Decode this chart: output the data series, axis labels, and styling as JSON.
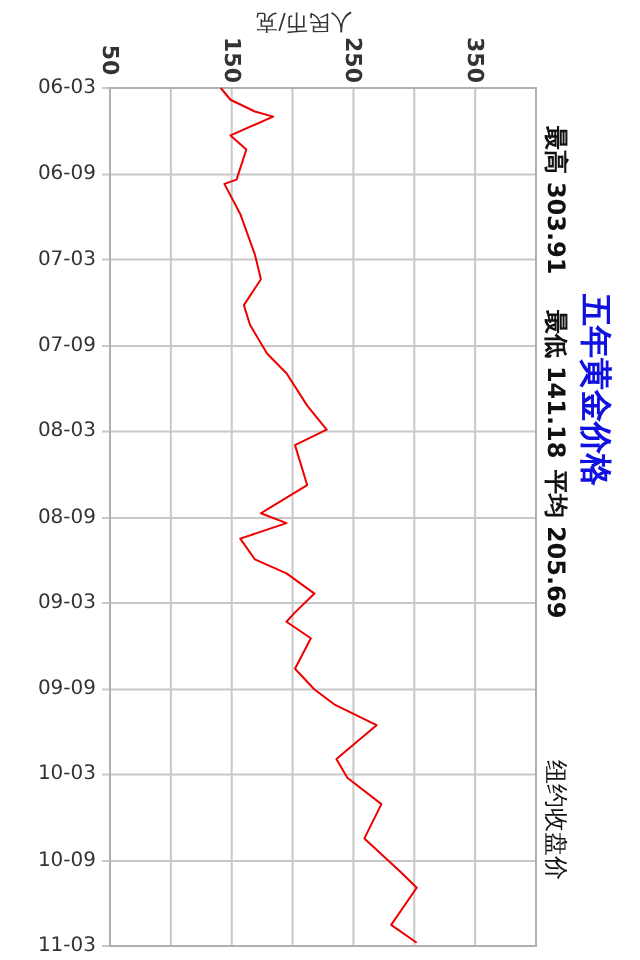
{
  "chart_data": {
    "type": "line",
    "title": "五年黄金价格",
    "ylabel": "人民币/克",
    "annotations": [
      "最高 303.91",
      "最低 141.18",
      "平均 205.69",
      "纽约收盘价"
    ],
    "orientation": "horizontal",
    "ylim": [
      "2011-03",
      "2006-03"
    ],
    "yticks": [
      {
        "value": "2006-03",
        "label": "06-03"
      },
      {
        "value": "2006-09",
        "label": "06-09"
      },
      {
        "value": "2007-03",
        "label": "07-03"
      },
      {
        "value": "2007-09",
        "label": "07-09"
      },
      {
        "value": "2008-03",
        "label": "08-03"
      },
      {
        "value": "2008-09",
        "label": "08-09"
      },
      {
        "value": "2009-03",
        "label": "09-03"
      },
      {
        "value": "2009-09",
        "label": "09-09"
      },
      {
        "value": "2010-03",
        "label": "10-03"
      },
      {
        "value": "2010-09",
        "label": "10-09"
      },
      {
        "value": "2011-03",
        "label": "11-03"
      }
    ],
    "xlim": [
      50,
      400
    ],
    "xticks": [
      50,
      {
        "value": 100,
        "label": null
      },
      150,
      {
        "value": 200,
        "label": null
      },
      250,
      {
        "value": 300,
        "label": null
      },
      350,
      {
        "value": 400,
        "label": null
      }
    ],
    "grid": true,
    "marker": "none",
    "line_style": "solid",
    "x": [
      "2006-03-01",
      "2006-03-26",
      "2006-04-20",
      "2006-05-01",
      "2006-06-10",
      "2006-07-10",
      "2006-09-12",
      "2006-09-21",
      "2006-11-24",
      "2007-02-18",
      "2007-04-12",
      "2007-06-06",
      "2007-07-18",
      "2007-09-17",
      "2007-10-29",
      "2008-01-06",
      "2008-02-26",
      "2008-03-30",
      "2008-06-23",
      "2008-08-22",
      "2008-09-12",
      "2008-10-15",
      "2008-11-28",
      "2008-12-28",
      "2009-02-09",
      "2009-03-21",
      "2009-04-10",
      "2009-05-15",
      "2009-07-19",
      "2009-09-01",
      "2009-10-04",
      "2009-11-16",
      "2010-01-27",
      "2010-03-08",
      "2010-05-03",
      "2010-07-15",
      "2010-09-25",
      "2010-10-28",
      "2011-01-15",
      "2011-02-22"
    ],
    "series": [
      {
        "color": "#ee0000",
        "values": [
          141,
          149,
          169,
          184,
          149,
          162,
          154,
          144,
          157,
          169,
          174,
          160,
          165,
          179,
          195,
          212,
          228,
          202,
          212,
          174,
          195,
          157,
          169,
          195,
          218,
          202,
          195,
          215,
          202,
          218,
          235,
          269,
          236,
          245,
          273,
          259,
          289,
          302,
          281,
          302
        ]
      }
    ]
  }
}
